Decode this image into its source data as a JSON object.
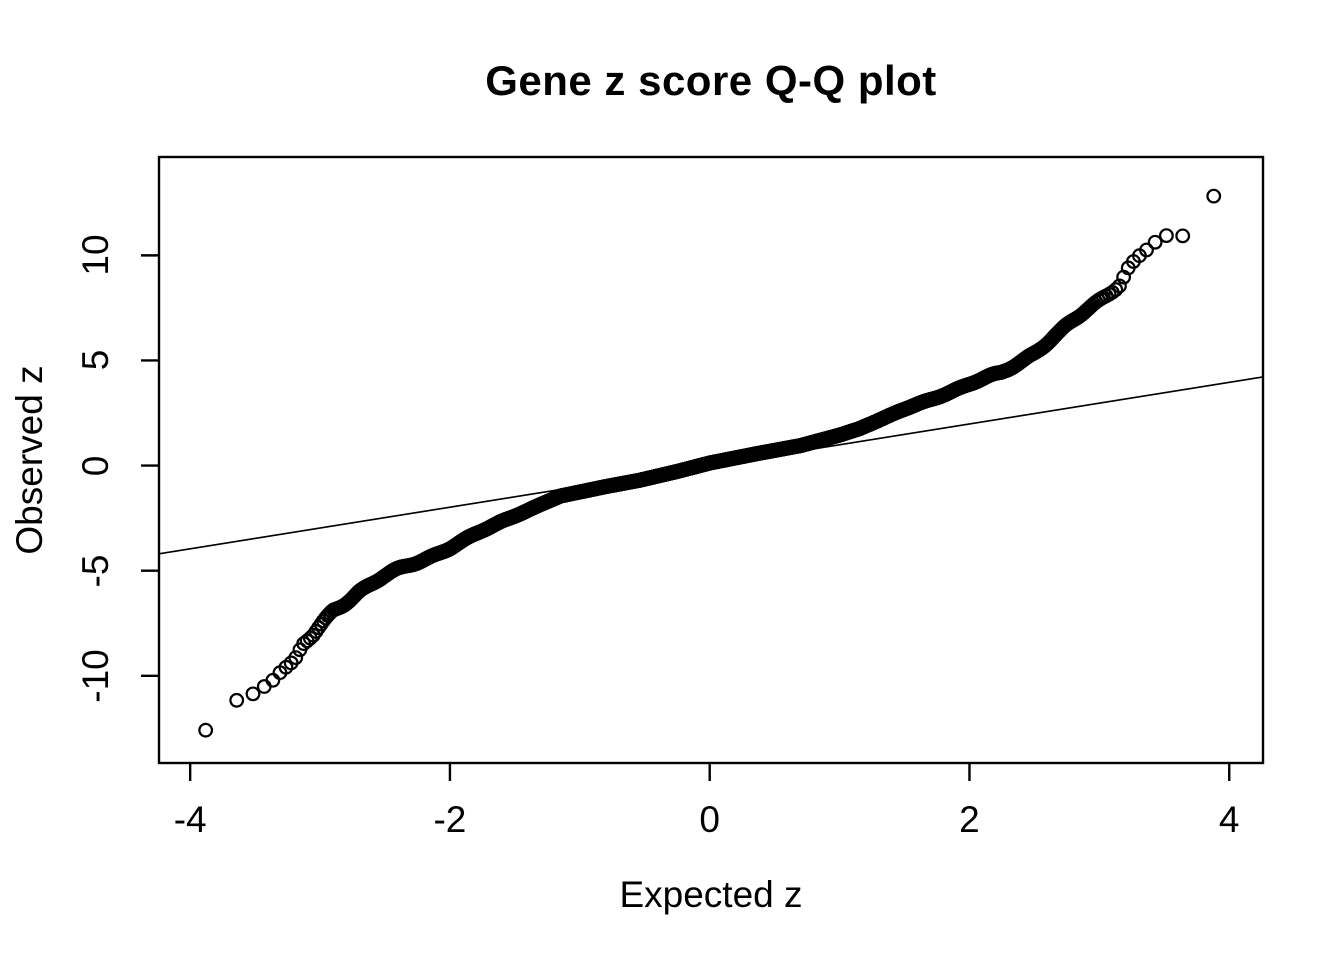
{
  "page": {
    "background": "#ffffff",
    "foreground": "#000000"
  },
  "chart_data": {
    "type": "scatter",
    "subtype": "qqnorm",
    "title": "Gene z score Q-Q plot",
    "xlabel": "Expected z",
    "ylabel": "Observed z",
    "xlim": [
      -4.24,
      4.26
    ],
    "ylim": [
      -14.15,
      14.68
    ],
    "x_ticks": [
      -4,
      -2,
      0,
      2,
      4
    ],
    "y_ticks": [
      -10,
      -5,
      0,
      5,
      10
    ],
    "grid": false,
    "legend": null,
    "marker": "open-circle",
    "point_color": "#000000",
    "line_color": "#000000",
    "background": "#ffffff",
    "n_points": 12000,
    "reference_line": {
      "slope": 0.99,
      "intercept": 0.0
    },
    "qq_curve": {
      "description": "Observed gene z-score quantiles versus expected standard-normal quantiles; heavy-tailed S-shape crossing the reference line near the origin",
      "anchors_expected_observed": [
        [
          -3.94,
          -13.1
        ],
        [
          -3.78,
          -11.55
        ],
        [
          -3.65,
          -11.2
        ],
        [
          -3.49,
          -10.8
        ],
        [
          -3.44,
          -10.5
        ],
        [
          -3.31,
          -9.75
        ],
        [
          -3.2,
          -9.4
        ],
        [
          -3.13,
          -8.55
        ],
        [
          -3.05,
          -8.1
        ],
        [
          -2.9,
          -6.9
        ],
        [
          -2.7,
          -5.95
        ],
        [
          -2.51,
          -5.3
        ],
        [
          -2.2,
          -4.45
        ],
        [
          -2.0,
          -3.9
        ],
        [
          -1.6,
          -2.65
        ],
        [
          -1.15,
          -1.45
        ],
        [
          -0.8,
          -1.0
        ],
        [
          -0.54,
          -0.7
        ],
        [
          -0.25,
          -0.28
        ],
        [
          0.0,
          0.12
        ],
        [
          0.35,
          0.55
        ],
        [
          0.7,
          0.95
        ],
        [
          1.0,
          1.45
        ],
        [
          1.15,
          1.75
        ],
        [
          1.47,
          2.6
        ],
        [
          1.8,
          3.4
        ],
        [
          2.24,
          4.4
        ],
        [
          2.5,
          5.4
        ],
        [
          2.7,
          6.3
        ],
        [
          2.9,
          7.4
        ],
        [
          3.0,
          7.9
        ],
        [
          3.16,
          8.7
        ],
        [
          3.21,
          9.3
        ],
        [
          3.31,
          9.9
        ],
        [
          3.42,
          10.55
        ],
        [
          3.54,
          10.9
        ],
        [
          3.67,
          11.1
        ],
        [
          3.78,
          12.5
        ],
        [
          3.94,
          13.05
        ]
      ]
    },
    "extreme_points": {
      "min": [
        -3.94,
        -13.1
      ],
      "max": [
        3.94,
        13.05
      ]
    }
  }
}
